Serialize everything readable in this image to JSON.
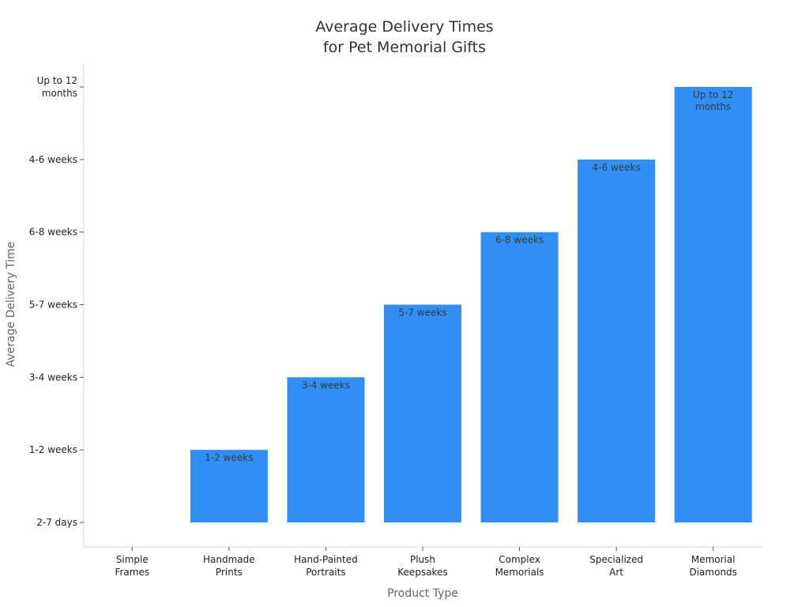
{
  "chart_data": {
    "type": "bar",
    "title": [
      "Average Delivery Times",
      "for Pet Memorial Gifts"
    ],
    "xlabel": "Product Type",
    "ylabel": "Average Delivery Time",
    "y_ticks": [
      "2-7 days",
      "1-2 weeks",
      "3-4 weeks",
      "5-7 weeks",
      "6-8 weeks",
      "4-6 weeks",
      "Up to 12 months"
    ],
    "categories": [
      "Simple Frames",
      "Handmade Prints",
      "Hand-Painted Portraits",
      "Plush Keepsakes",
      "Complex Memorials",
      "Specialized Art",
      "Memorial Diamonds"
    ],
    "values": [
      "2-7 days",
      "1-2 weeks",
      "3-4 weeks",
      "5-7 weeks",
      "6-8 weeks",
      "4-6 weeks",
      "Up to 12 months"
    ],
    "data_labels": [
      "",
      "1-2 weeks",
      "3-4 weeks",
      "5-7 weeks",
      "6-8 weeks",
      "4-6 weeks",
      "Up to 12 months"
    ],
    "bar_color": "#2f8ff5",
    "grid": false
  }
}
